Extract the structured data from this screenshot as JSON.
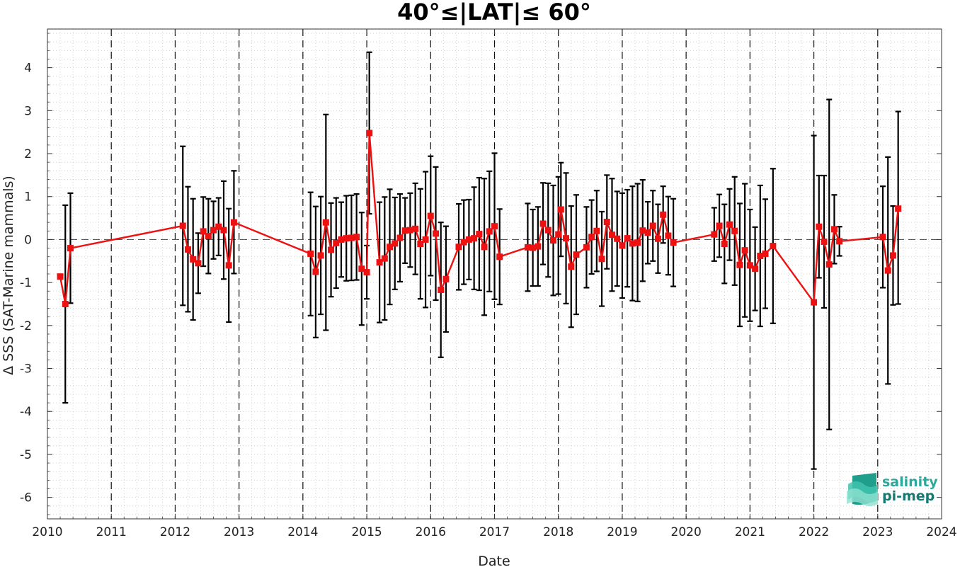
{
  "chart_data": {
    "type": "line",
    "title": "40°≤|LAT|≤ 60°",
    "xlabel": "Date",
    "ylabel": "Δ SSS (SAT-Marine mammals)",
    "xlim": [
      2010,
      2024
    ],
    "ylim": [
      -6.5,
      4.9
    ],
    "x_tick_labels": [
      "2010",
      "2011",
      "2012",
      "2013",
      "2014",
      "2015",
      "2016",
      "2017",
      "2018",
      "2019",
      "2020",
      "2021",
      "2022",
      "2023",
      "2024"
    ],
    "y_tick_labels": [
      "-6",
      "-5",
      "-4",
      "-3",
      "-2",
      "-1",
      "0",
      "1",
      "2",
      "3",
      "4"
    ],
    "grid": true,
    "reference_line_y": 0,
    "year_dividers": true,
    "colors": {
      "series": "#ee1111",
      "errorbars": "#000000",
      "grid": "#c8c8c8",
      "reference": "#555555"
    },
    "series": [
      {
        "marker": "square",
        "points": [
          {
            "x": 2010.2,
            "y": -0.86,
            "ylo": -0.86,
            "yhi": -0.86
          },
          {
            "x": 2010.28,
            "y": -1.5,
            "ylo": -3.8,
            "yhi": 0.8
          },
          {
            "x": 2010.36,
            "y": -0.2,
            "ylo": -1.48,
            "yhi": 1.08
          },
          {
            "x": 2012.12,
            "y": 0.32,
            "ylo": -1.53,
            "yhi": 2.17
          },
          {
            "x": 2012.2,
            "y": -0.23,
            "ylo": -1.68,
            "yhi": 1.23
          },
          {
            "x": 2012.28,
            "y": -0.46,
            "ylo": -1.87,
            "yhi": 0.95
          },
          {
            "x": 2012.36,
            "y": -0.55,
            "ylo": -1.25,
            "yhi": 0.15
          },
          {
            "x": 2012.44,
            "y": 0.19,
            "ylo": -0.62,
            "yhi": 0.99
          },
          {
            "x": 2012.52,
            "y": 0.08,
            "ylo": -0.79,
            "yhi": 0.95
          },
          {
            "x": 2012.6,
            "y": 0.22,
            "ylo": -0.45,
            "yhi": 0.89
          },
          {
            "x": 2012.68,
            "y": 0.3,
            "ylo": -0.37,
            "yhi": 0.97
          },
          {
            "x": 2012.76,
            "y": 0.22,
            "ylo": -0.92,
            "yhi": 1.36
          },
          {
            "x": 2012.84,
            "y": -0.6,
            "ylo": -1.92,
            "yhi": 0.72
          },
          {
            "x": 2012.92,
            "y": 0.4,
            "ylo": -0.79,
            "yhi": 1.6
          },
          {
            "x": 2014.12,
            "y": -0.33,
            "ylo": -1.77,
            "yhi": 1.1
          },
          {
            "x": 2014.2,
            "y": -0.75,
            "ylo": -2.28,
            "yhi": 0.77
          },
          {
            "x": 2014.28,
            "y": -0.37,
            "ylo": -1.74,
            "yhi": 1.0
          },
          {
            "x": 2014.36,
            "y": 0.4,
            "ylo": -2.11,
            "yhi": 2.91
          },
          {
            "x": 2014.44,
            "y": -0.24,
            "ylo": -1.33,
            "yhi": 0.85
          },
          {
            "x": 2014.52,
            "y": -0.08,
            "ylo": -1.13,
            "yhi": 0.97
          },
          {
            "x": 2014.6,
            "y": 0.0,
            "ylo": -0.87,
            "yhi": 0.87
          },
          {
            "x": 2014.68,
            "y": 0.03,
            "ylo": -0.96,
            "yhi": 1.02
          },
          {
            "x": 2014.76,
            "y": 0.04,
            "ylo": -0.95,
            "yhi": 1.03
          },
          {
            "x": 2014.84,
            "y": 0.06,
            "ylo": -0.94,
            "yhi": 1.06
          },
          {
            "x": 2014.92,
            "y": -0.68,
            "ylo": -1.99,
            "yhi": 0.63
          },
          {
            "x": 2015.0,
            "y": -0.76,
            "ylo": -1.38,
            "yhi": -0.14
          },
          {
            "x": 2015.04,
            "y": 2.48,
            "ylo": 0.6,
            "yhi": 4.36
          },
          {
            "x": 2015.2,
            "y": -0.53,
            "ylo": -1.93,
            "yhi": 0.87
          },
          {
            "x": 2015.28,
            "y": -0.44,
            "ylo": -1.87,
            "yhi": 0.99
          },
          {
            "x": 2015.36,
            "y": -0.17,
            "ylo": -1.51,
            "yhi": 1.17
          },
          {
            "x": 2015.44,
            "y": -0.09,
            "ylo": -1.16,
            "yhi": 0.98
          },
          {
            "x": 2015.52,
            "y": 0.04,
            "ylo": -0.98,
            "yhi": 1.06
          },
          {
            "x": 2015.6,
            "y": 0.21,
            "ylo": -0.55,
            "yhi": 0.97
          },
          {
            "x": 2015.68,
            "y": 0.22,
            "ylo": -0.64,
            "yhi": 1.08
          },
          {
            "x": 2015.76,
            "y": 0.25,
            "ylo": -0.81,
            "yhi": 1.31
          },
          {
            "x": 2015.84,
            "y": -0.1,
            "ylo": -1.38,
            "yhi": 1.18
          },
          {
            "x": 2015.92,
            "y": 0.0,
            "ylo": -1.58,
            "yhi": 1.58
          },
          {
            "x": 2016.0,
            "y": 0.55,
            "ylo": -0.84,
            "yhi": 1.94
          },
          {
            "x": 2016.08,
            "y": 0.14,
            "ylo": -1.41,
            "yhi": 1.69
          },
          {
            "x": 2016.16,
            "y": -1.17,
            "ylo": -2.74,
            "yhi": 0.4
          },
          {
            "x": 2016.24,
            "y": -0.92,
            "ylo": -2.15,
            "yhi": 0.31
          },
          {
            "x": 2016.44,
            "y": -0.17,
            "ylo": -1.17,
            "yhi": 0.83
          },
          {
            "x": 2016.52,
            "y": -0.06,
            "ylo": -1.04,
            "yhi": 0.92
          },
          {
            "x": 2016.6,
            "y": 0.0,
            "ylo": -0.93,
            "yhi": 0.93
          },
          {
            "x": 2016.68,
            "y": 0.03,
            "ylo": -1.16,
            "yhi": 1.22
          },
          {
            "x": 2016.76,
            "y": 0.13,
            "ylo": -1.18,
            "yhi": 1.44
          },
          {
            "x": 2016.84,
            "y": -0.17,
            "ylo": -1.76,
            "yhi": 1.42
          },
          {
            "x": 2016.92,
            "y": 0.19,
            "ylo": -1.21,
            "yhi": 1.59
          },
          {
            "x": 2017.0,
            "y": 0.31,
            "ylo": -1.39,
            "yhi": 2.01
          },
          {
            "x": 2017.08,
            "y": -0.4,
            "ylo": -1.51,
            "yhi": 0.71
          },
          {
            "x": 2017.52,
            "y": -0.18,
            "ylo": -1.2,
            "yhi": 0.84
          },
          {
            "x": 2017.6,
            "y": -0.19,
            "ylo": -1.08,
            "yhi": 0.7
          },
          {
            "x": 2017.68,
            "y": -0.16,
            "ylo": -1.08,
            "yhi": 0.76
          },
          {
            "x": 2017.76,
            "y": 0.37,
            "ylo": -0.58,
            "yhi": 1.32
          },
          {
            "x": 2017.84,
            "y": 0.22,
            "ylo": -0.87,
            "yhi": 1.31
          },
          {
            "x": 2017.92,
            "y": -0.02,
            "ylo": -1.3,
            "yhi": 1.26
          },
          {
            "x": 2018.0,
            "y": 0.12,
            "ylo": -1.27,
            "yhi": 1.46
          },
          {
            "x": 2018.04,
            "y": 0.7,
            "ylo": -0.39,
            "yhi": 1.79
          },
          {
            "x": 2018.12,
            "y": 0.03,
            "ylo": -1.49,
            "yhi": 1.55
          },
          {
            "x": 2018.2,
            "y": -0.63,
            "ylo": -2.04,
            "yhi": 0.78
          },
          {
            "x": 2018.28,
            "y": -0.35,
            "ylo": -1.74,
            "yhi": 1.04
          },
          {
            "x": 2018.44,
            "y": -0.18,
            "ylo": -1.12,
            "yhi": 0.76
          },
          {
            "x": 2018.52,
            "y": 0.06,
            "ylo": -0.8,
            "yhi": 0.92
          },
          {
            "x": 2018.6,
            "y": 0.2,
            "ylo": -0.74,
            "yhi": 1.14
          },
          {
            "x": 2018.68,
            "y": -0.45,
            "ylo": -1.55,
            "yhi": 0.65
          },
          {
            "x": 2018.76,
            "y": 0.41,
            "ylo": -0.68,
            "yhi": 1.5
          },
          {
            "x": 2018.84,
            "y": 0.11,
            "ylo": -1.2,
            "yhi": 1.42
          },
          {
            "x": 2018.92,
            "y": 0.02,
            "ylo": -1.08,
            "yhi": 1.12
          },
          {
            "x": 2019.0,
            "y": -0.14,
            "ylo": -1.36,
            "yhi": 1.08
          },
          {
            "x": 2019.08,
            "y": 0.03,
            "ylo": -1.1,
            "yhi": 1.16
          },
          {
            "x": 2019.16,
            "y": -0.09,
            "ylo": -1.42,
            "yhi": 1.24
          },
          {
            "x": 2019.24,
            "y": -0.07,
            "ylo": -1.44,
            "yhi": 1.3
          },
          {
            "x": 2019.32,
            "y": 0.21,
            "ylo": -0.97,
            "yhi": 1.39
          },
          {
            "x": 2019.4,
            "y": 0.16,
            "ylo": -0.56,
            "yhi": 0.88
          },
          {
            "x": 2019.48,
            "y": 0.32,
            "ylo": -0.5,
            "yhi": 1.14
          },
          {
            "x": 2019.56,
            "y": 0.02,
            "ylo": -0.78,
            "yhi": 0.82
          },
          {
            "x": 2019.64,
            "y": 0.58,
            "ylo": -0.08,
            "yhi": 1.24
          },
          {
            "x": 2019.72,
            "y": 0.09,
            "ylo": -0.82,
            "yhi": 1.0
          },
          {
            "x": 2019.8,
            "y": -0.07,
            "ylo": -1.09,
            "yhi": 0.95
          },
          {
            "x": 2020.44,
            "y": 0.12,
            "ylo": -0.5,
            "yhi": 0.74
          },
          {
            "x": 2020.52,
            "y": 0.32,
            "ylo": -0.41,
            "yhi": 1.05
          },
          {
            "x": 2020.6,
            "y": -0.1,
            "ylo": -1.02,
            "yhi": 0.82
          },
          {
            "x": 2020.68,
            "y": 0.35,
            "ylo": -0.48,
            "yhi": 1.18
          },
          {
            "x": 2020.76,
            "y": 0.2,
            "ylo": -1.06,
            "yhi": 1.46
          },
          {
            "x": 2020.84,
            "y": -0.59,
            "ylo": -2.02,
            "yhi": 0.84
          },
          {
            "x": 2020.92,
            "y": -0.25,
            "ylo": -1.8,
            "yhi": 1.3
          },
          {
            "x": 2021.0,
            "y": -0.6,
            "ylo": -1.9,
            "yhi": 0.7
          },
          {
            "x": 2021.08,
            "y": -0.68,
            "ylo": -1.65,
            "yhi": 0.29
          },
          {
            "x": 2021.16,
            "y": -0.38,
            "ylo": -2.02,
            "yhi": 1.26
          },
          {
            "x": 2021.24,
            "y": -0.33,
            "ylo": -1.6,
            "yhi": 0.94
          },
          {
            "x": 2021.36,
            "y": -0.15,
            "ylo": -1.95,
            "yhi": 1.65
          },
          {
            "x": 2022.0,
            "y": -1.46,
            "ylo": -5.34,
            "yhi": 2.42
          },
          {
            "x": 2022.08,
            "y": 0.3,
            "ylo": -0.89,
            "yhi": 1.49
          },
          {
            "x": 2022.16,
            "y": -0.05,
            "ylo": -1.59,
            "yhi": 1.49
          },
          {
            "x": 2022.24,
            "y": -0.58,
            "ylo": -4.42,
            "yhi": 3.26
          },
          {
            "x": 2022.32,
            "y": 0.24,
            "ylo": -0.56,
            "yhi": 1.04
          },
          {
            "x": 2022.4,
            "y": -0.04,
            "ylo": -0.38,
            "yhi": 0.3
          },
          {
            "x": 2023.08,
            "y": 0.06,
            "ylo": -1.12,
            "yhi": 1.24
          },
          {
            "x": 2023.16,
            "y": -0.72,
            "ylo": -3.36,
            "yhi": 1.92
          },
          {
            "x": 2023.24,
            "y": -0.37,
            "ylo": -1.52,
            "yhi": 0.78
          },
          {
            "x": 2023.32,
            "y": 0.72,
            "ylo": -1.5,
            "yhi": 2.98
          }
        ]
      }
    ]
  },
  "logo": {
    "line1": "salinity",
    "line2": "pi-mep",
    "line1_color": "#2aaa9a",
    "line2_color": "#177a70"
  }
}
